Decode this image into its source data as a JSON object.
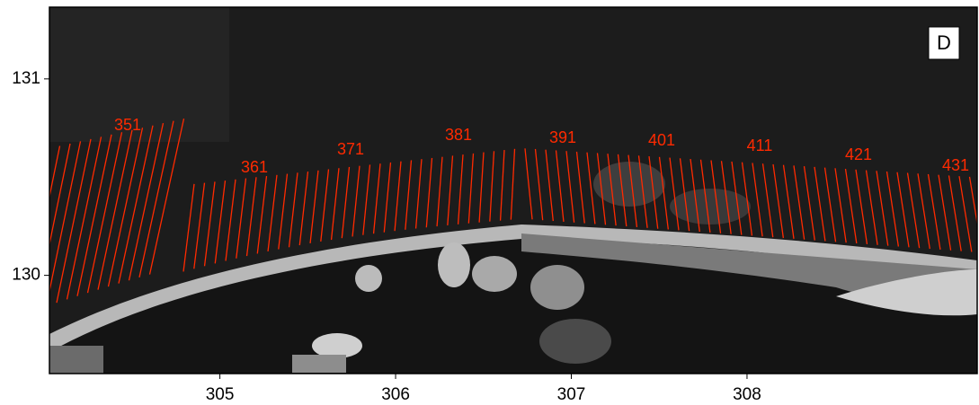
{
  "panel_label": "D",
  "axes": {
    "xticks": [
      305,
      306,
      307,
      308
    ],
    "yticks": [
      130,
      131
    ],
    "xlim": [
      304.03,
      309.31
    ],
    "ylim": [
      129.5,
      131.365
    ]
  },
  "transect_labels": [
    "351",
    "361",
    "371",
    "381",
    "391",
    "401",
    "411",
    "421",
    "431"
  ]
}
